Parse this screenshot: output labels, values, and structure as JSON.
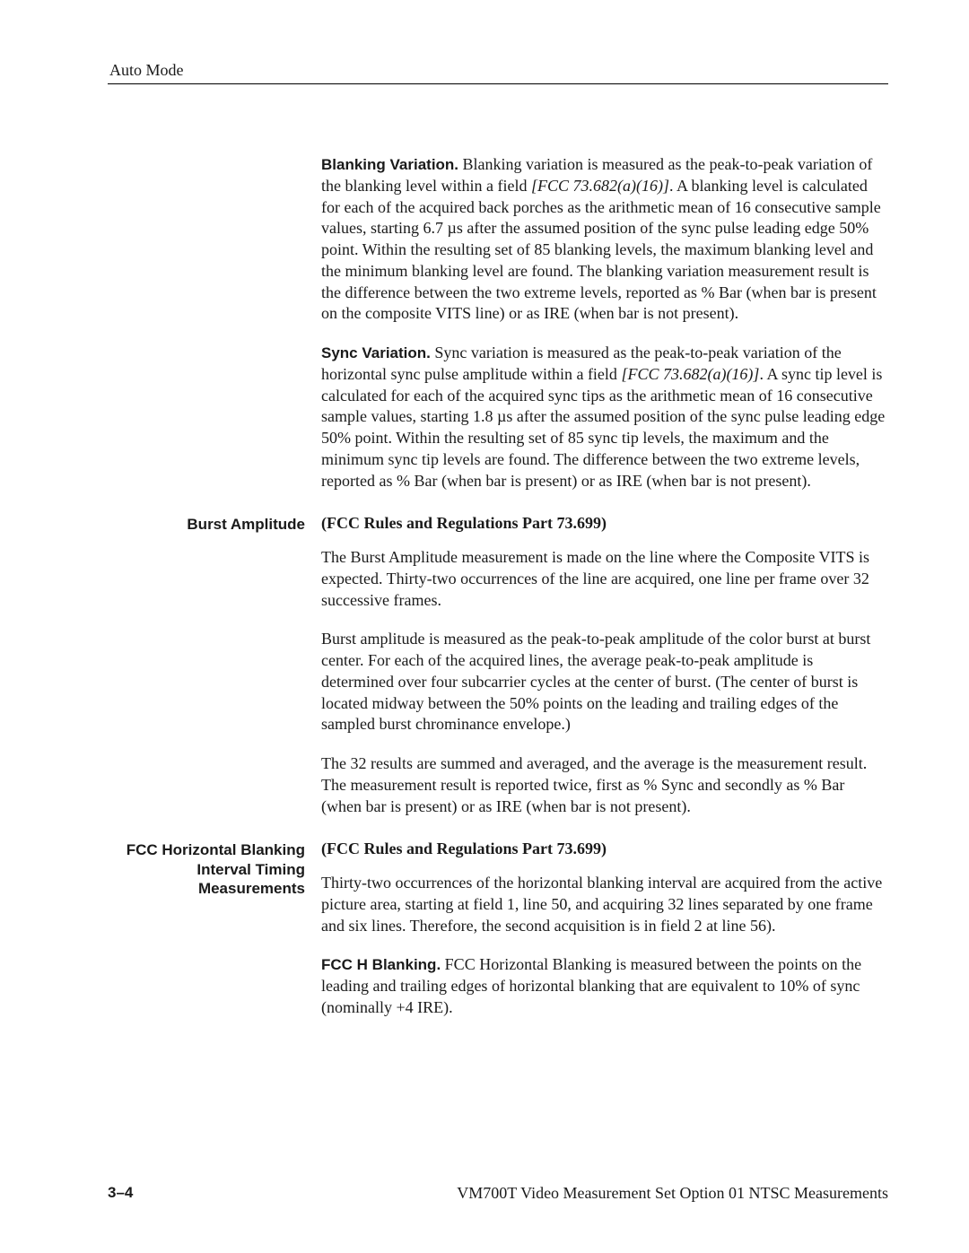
{
  "header": "Auto Mode",
  "blanking_variation": {
    "heading": "Blanking Variation.",
    "body_a": " Blanking variation is measured as the peak-to-peak variation of the blanking level within a field ",
    "ref": "[FCC 73.682(a)(16)]",
    "body_b": ". A blanking level is calculated for each of the acquired back porches as the arithmetic mean of 16 consecutive sample values, starting 6.7 µs after the assumed position of the sync pulse leading edge 50% point. Within the resulting set of 85 blanking levels, the maximum blanking level and the minimum blanking level are found. The blanking variation measurement result is the difference between the two extreme levels, reported as % Bar (when bar is present on the composite VITS line) or as IRE (when bar is not present)."
  },
  "sync_variation": {
    "heading": "Sync Variation.",
    "body_a": " Sync variation is measured as the peak-to-peak variation of the horizontal sync pulse amplitude within a field ",
    "ref": "[FCC 73.682(a)(16)]",
    "body_b": ". A sync tip level is calculated for each of the acquired sync tips as the arithmetic mean of 16 consecutive sample values, starting 1.8 µs after the assumed position of the sync pulse leading edge 50% point. Within the resulting set of 85 sync tip levels, the maximum and the minimum sync tip levels are found. The difference between the two extreme levels, reported as % Bar (when bar is present) or as IRE (when bar is not present)."
  },
  "burst_amplitude": {
    "side": "Burst Amplitude",
    "title": "(FCC Rules and Regulations Part 73.699)",
    "p1": "The Burst Amplitude measurement is made on the line where the Composite VITS is expected. Thirty-two occurrences of the line are acquired, one line per frame over 32 successive frames.",
    "p2": "Burst amplitude is measured as the peak-to-peak amplitude of the color burst at burst center. For each of the acquired lines, the average peak-to-peak amplitude is determined over four subcarrier cycles at the center of burst. (The center of burst is located midway between the 50% points on the leading and trailing edges of the sampled burst chrominance envelope.)",
    "p3": "The 32 results are summed and averaged, and the average is the measurement result. The measurement result is reported twice, first as % Sync and secondly as % Bar (when bar is present) or as IRE (when bar is not present)."
  },
  "fcc_hbi": {
    "side": "FCC Horizontal Blanking Interval Timing Measurements",
    "title": "(FCC Rules and Regulations Part 73.699)",
    "p1": "Thirty-two occurrences of the horizontal blanking interval are acquired from the active picture area, starting at field 1, line 50, and acquiring 32 lines separated by one frame and six lines. Therefore, the second acquisition is in field 2 at line 56).",
    "h_blanking_heading": "FCC H Blanking.",
    "h_blanking_body": " FCC Horizontal Blanking is measured between the points on the leading and trailing edges of horizontal blanking that are equivalent to 10% of sync (nominally +4 IRE)."
  },
  "footer": {
    "page": "3–4",
    "right": "VM700T Video Measurement Set Option 01 NTSC Measurements"
  }
}
